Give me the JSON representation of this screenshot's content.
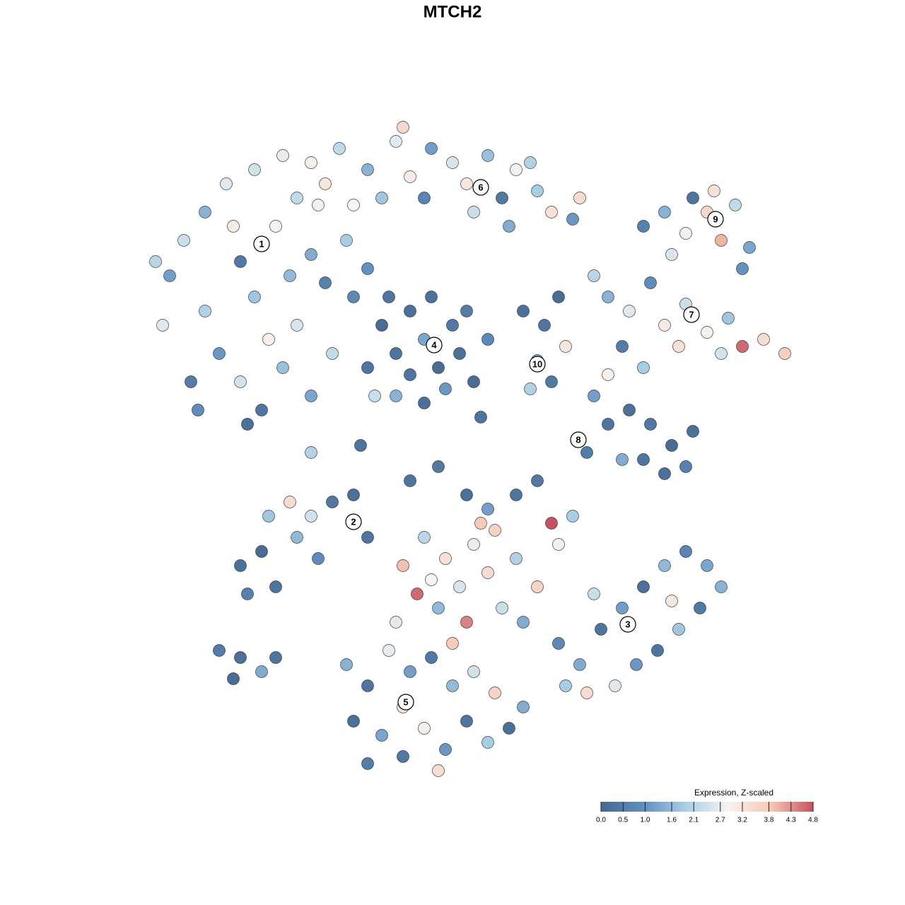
{
  "chart_data": {
    "type": "scatter",
    "title": "MTCH2",
    "xlim": [
      -50,
      50
    ],
    "ylim": [
      -50,
      50
    ],
    "x": [
      -40,
      -38,
      -35,
      -32,
      -30,
      -28,
      -25,
      -22,
      -20,
      -18,
      -35,
      -33,
      -30,
      -27,
      -29,
      -24,
      -22,
      -26,
      -41,
      -37,
      -15,
      -14,
      -20,
      -17,
      -12,
      -36,
      -42,
      -31,
      -23,
      -19,
      -28,
      -24,
      -20,
      -16,
      -12,
      -8,
      -6,
      -3,
      0,
      2,
      5,
      7,
      9,
      12,
      14,
      17,
      18,
      -10,
      -14,
      -4,
      3,
      -7,
      8,
      11,
      -18,
      -10,
      -8,
      -6,
      -4,
      -2,
      0,
      1,
      -12,
      -8,
      -4,
      -1,
      2,
      -6,
      -3,
      3,
      -11,
      5,
      -9,
      10,
      13,
      15,
      12,
      14,
      11,
      16,
      27,
      30,
      33,
      36,
      38,
      40,
      42,
      34,
      31,
      41,
      37,
      22,
      25,
      28,
      30,
      33,
      36,
      39,
      41,
      44,
      47,
      38,
      32,
      24,
      27,
      20,
      20,
      22,
      25,
      28,
      31,
      27,
      30,
      33,
      24,
      19,
      22,
      34,
      -30,
      -27,
      -25,
      -22,
      -20,
      -17,
      -14,
      -23,
      -19,
      -26,
      -12,
      -29,
      -33,
      -30,
      -27,
      -25,
      -31,
      -6,
      -2,
      2,
      5,
      9,
      12,
      14,
      6,
      3,
      -1,
      -4,
      -7,
      -5,
      1,
      5,
      9,
      12,
      15,
      -2,
      2,
      7,
      10,
      17,
      -8,
      0,
      4,
      -3,
      15,
      18,
      21,
      24,
      27,
      30,
      33,
      36,
      38,
      35,
      32,
      29,
      26,
      23,
      19,
      16,
      31,
      20,
      -15,
      -12,
      -9,
      -6,
      -3,
      0,
      3,
      -14,
      -10,
      -7,
      -4,
      -1,
      2,
      5,
      8,
      10,
      -7,
      -2,
      6,
      -12,
      -20,
      -13,
      4
    ],
    "y": [
      25,
      30,
      34,
      38,
      27,
      22,
      32,
      36,
      28,
      24,
      20,
      14,
      10,
      6,
      4,
      12,
      18,
      16,
      18,
      10,
      30,
      22,
      8,
      14,
      26,
      6,
      27,
      32,
      25,
      35,
      40,
      42,
      41,
      43,
      40,
      44,
      39,
      43,
      41,
      38,
      42,
      36,
      40,
      37,
      34,
      33,
      36,
      36,
      35,
      36,
      34,
      46,
      32,
      41,
      38,
      18,
      14,
      20,
      16,
      12,
      18,
      14,
      12,
      8,
      7,
      9,
      20,
      11,
      22,
      10,
      8,
      16,
      22,
      20,
      18,
      22,
      13,
      10,
      9,
      15,
      32,
      34,
      31,
      34,
      30,
      35,
      29,
      36,
      28,
      26,
      37,
      22,
      20,
      24,
      18,
      21,
      17,
      19,
      15,
      16,
      14,
      14,
      15,
      15,
      12,
      25,
      8,
      4,
      6,
      4,
      1,
      -1,
      -3,
      -2,
      -1,
      0,
      11,
      3,
      -16,
      -14,
      -19,
      -12,
      -9,
      -7,
      -6,
      -7,
      -15,
      -9,
      -12,
      -20,
      -28,
      -29,
      -31,
      -29,
      -32,
      -4,
      -2,
      -6,
      -8,
      -6,
      -4,
      -10,
      -11,
      -13,
      -15,
      -12,
      -16,
      -20,
      -19,
      -17,
      -15,
      -19,
      -13,
      -22,
      -24,
      -22,
      -24,
      -9,
      -24,
      -27,
      -10,
      -18,
      -27,
      -30,
      -25,
      -22,
      -19,
      -16,
      -14,
      -16,
      -19,
      -22,
      -25,
      -28,
      -30,
      -33,
      -34,
      -33,
      -21,
      -20,
      -30,
      -33,
      -28,
      -31,
      -29,
      -33,
      -31,
      -38,
      -40,
      -43,
      -39,
      -42,
      -38,
      -41,
      -39,
      -36,
      -36,
      -45,
      -34,
      -44,
      0,
      1,
      5
    ],
    "values": [
      1.2,
      2.3,
      1.5,
      2.6,
      0.4,
      1.8,
      2.9,
      2.2,
      1.4,
      0.6,
      2.0,
      1.1,
      2.4,
      0.3,
      0.2,
      1.7,
      2.5,
      3.0,
      2.6,
      0.5,
      1.9,
      0.8,
      1.3,
      2.2,
      1.0,
      0.9,
      2.1,
      3.1,
      1.6,
      2.8,
      2.4,
      2.7,
      3.0,
      2.2,
      1.5,
      2.6,
      3.1,
      1.2,
      2.5,
      3.2,
      1.7,
      0.4,
      2.8,
      1.9,
      3.3,
      1.1,
      3.4,
      1.8,
      2.9,
      0.7,
      2.3,
      3.5,
      1.4,
      2.0,
      3.2,
      0.1,
      0.3,
      0.2,
      1.3,
      0.1,
      0.4,
      0.2,
      0.3,
      1.5,
      0.2,
      1.1,
      0.5,
      0.3,
      0.2,
      0.1,
      2.3,
      0.8,
      0.3,
      0.2,
      0.3,
      0.1,
      1.4,
      0.4,
      2.0,
      3.2,
      0.6,
      1.5,
      2.8,
      3.5,
      4.0,
      2.2,
      1.3,
      0.3,
      2.5,
      1.0,
      3.3,
      1.5,
      2.6,
      0.9,
      3.1,
      2.3,
      2.9,
      1.8,
      4.6,
      3.4,
      3.7,
      2.4,
      3.3,
      0.5,
      1.9,
      2.1,
      1.2,
      0.3,
      0.2,
      0.4,
      0.1,
      0.3,
      0.2,
      0.6,
      1.4,
      0.5,
      3.0,
      0.2,
      0.2,
      0.1,
      0.3,
      1.6,
      2.4,
      0.4,
      0.2,
      3.4,
      0.9,
      1.8,
      0.3,
      0.6,
      0.5,
      0.2,
      1.4,
      0.3,
      0.1,
      0.3,
      0.4,
      0.2,
      1.2,
      0.3,
      0.4,
      4.8,
      3.6,
      2.7,
      3.3,
      2.1,
      3.9,
      4.6,
      2.5,
      3.4,
      2.0,
      3.6,
      2.8,
      1.6,
      4.4,
      2.3,
      1.4,
      1.9,
      2.6,
      3.8,
      3.8,
      2.9,
      0.8,
      1.4,
      0.3,
      1.2,
      0.2,
      1.6,
      0.7,
      1.3,
      1.5,
      0.4,
      1.8,
      0.3,
      1.1,
      2.6,
      3.4,
      1.9,
      3.2,
      2.3,
      1.5,
      0.3,
      2.7,
      1.2,
      0.4,
      1.6,
      2.4,
      0.2,
      1.3,
      0.4,
      3.0,
      1.1,
      0.3,
      1.9,
      0.2,
      1.4,
      3.3,
      3.4,
      3.6,
      0.5,
      2.0,
      0.3,
      0.3
    ],
    "annotations": [
      {
        "label": "1",
        "x": -27,
        "y": 29.5
      },
      {
        "label": "2",
        "x": -14,
        "y": -9.8
      },
      {
        "label": "3",
        "x": 24.8,
        "y": -24.3
      },
      {
        "label": "4",
        "x": -2.6,
        "y": 15.2
      },
      {
        "label": "5",
        "x": -6.6,
        "y": -35.3
      },
      {
        "label": "6",
        "x": 4,
        "y": 37.5
      },
      {
        "label": "7",
        "x": 33.8,
        "y": 19.5
      },
      {
        "label": "8",
        "x": 17.8,
        "y": 1.8
      },
      {
        "label": "9",
        "x": 37.2,
        "y": 33
      },
      {
        "label": "10",
        "x": 12,
        "y": 12.5
      }
    ],
    "colorbar": {
      "title": "Expression, Z-scaled",
      "lim": [
        0,
        4.8
      ],
      "ticks": [
        {
          "value": 0,
          "label": "0.0"
        },
        0.5,
        {
          "value": 1,
          "label": "1.0"
        },
        1.6,
        2.1,
        2.7,
        3.2,
        3.8,
        4.3,
        4.8
      ],
      "colors": [
        "#456990",
        "#5f8fc0",
        "#a9cfe3",
        "#f7f4f2",
        "#f6c9b4",
        "#c8505f"
      ]
    }
  }
}
